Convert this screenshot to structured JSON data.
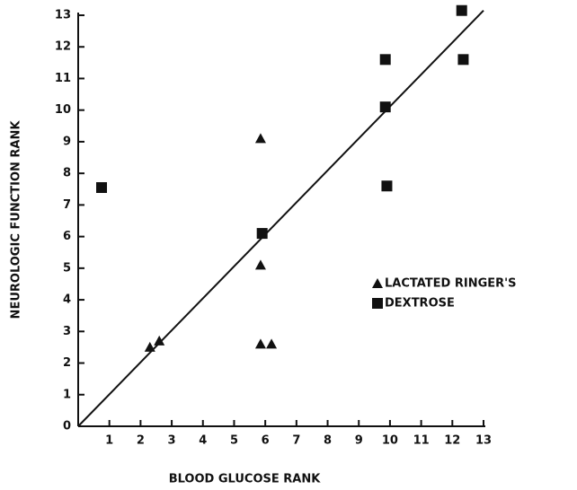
{
  "chart_data": {
    "type": "scatter",
    "xlabel": "BLOOD GLUCOSE RANK",
    "ylabel": "NEUROLOGIC FUNCTION RANK",
    "xlim": [
      0,
      13
    ],
    "ylim": [
      0,
      13
    ],
    "xticks": [
      1,
      2,
      3,
      4,
      5,
      6,
      7,
      8,
      9,
      10,
      11,
      12,
      13
    ],
    "yticks": [
      0,
      1,
      2,
      3,
      4,
      5,
      6,
      7,
      8,
      9,
      10,
      11,
      12,
      13
    ],
    "legend": "right",
    "series": [
      {
        "name": "LACTATED RINGER'S",
        "marker": "triangle",
        "color": "#111111",
        "x": [
          2.3,
          2.6,
          5.85,
          5.85,
          5.85,
          6.2
        ],
        "values": [
          2.5,
          2.7,
          9.1,
          5.1,
          2.6,
          2.6
        ]
      },
      {
        "name": "DEXTROSE",
        "marker": "square",
        "color": "#111111",
        "x": [
          0.75,
          5.9,
          9.85,
          9.85,
          9.9,
          12.3,
          12.35
        ],
        "values": [
          7.55,
          6.1,
          11.6,
          10.1,
          7.6,
          13.15,
          11.6
        ]
      }
    ],
    "trend_line": {
      "x": [
        0,
        13
      ],
      "values": [
        0,
        13.15
      ]
    }
  }
}
